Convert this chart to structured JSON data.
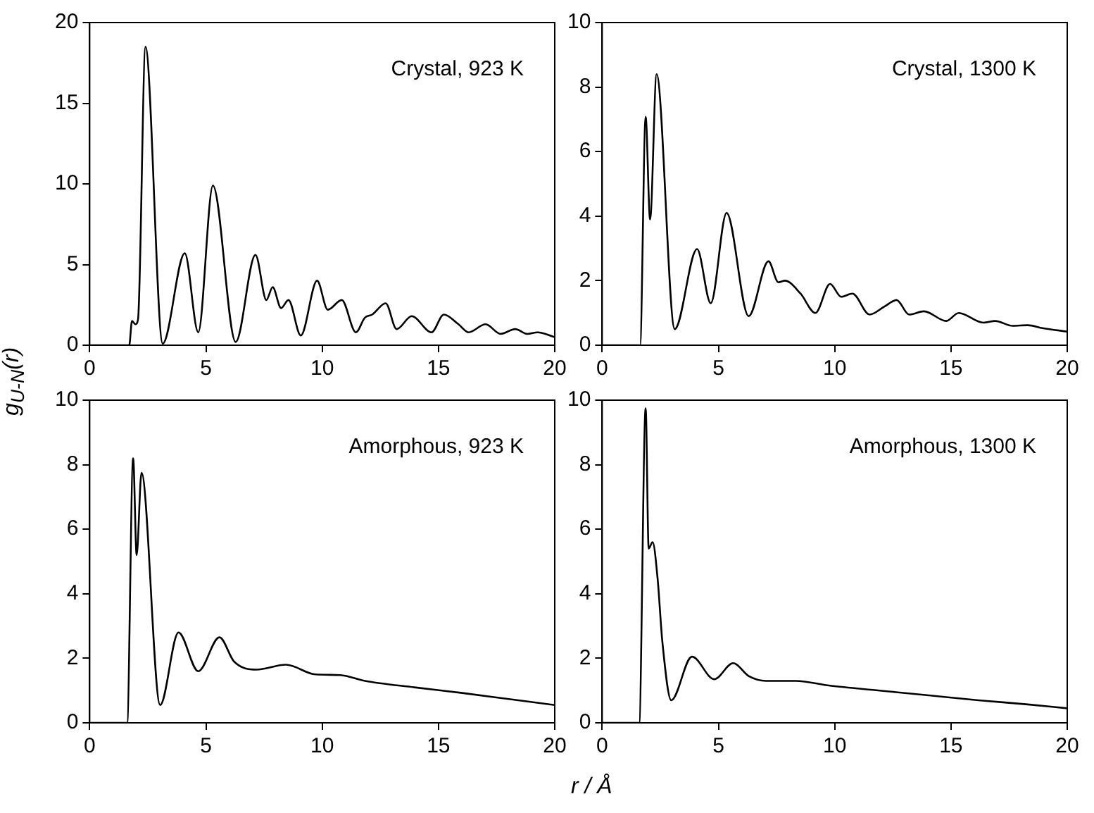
{
  "chart_data": [
    {
      "type": "line",
      "ylabel": "g$_{U-N}$(r)",
      "annotations": [
        "Crystal, 923 K"
      ],
      "xlim": [
        0,
        20
      ],
      "xticks": [
        0,
        5,
        10,
        15,
        20
      ],
      "ylim": [
        0,
        20
      ],
      "yticks": [
        0,
        5,
        10,
        15,
        20
      ],
      "grid": false,
      "legend": false,
      "marker": "none",
      "series": [
        {
          "color": "#000000",
          "x": [
            0,
            1.7,
            1.82,
            1.97,
            2.08,
            2.4,
            3.14,
            4.09,
            4.67,
            5.3,
            6.28,
            7.13,
            7.6,
            7.87,
            8.23,
            8.55,
            9.08,
            9.78,
            10.24,
            10.84,
            11.45,
            11.83,
            12.15,
            12.73,
            13.2,
            13.85,
            14.7,
            15.23,
            15.86,
            16.29,
            17.03,
            17.67,
            18.3,
            18.83,
            19.26,
            20
          ],
          "values": [
            0,
            0,
            1.5,
            1.3,
            1.6,
            18.5,
            0.1,
            5.7,
            0.8,
            9.9,
            0.2,
            5.6,
            2.8,
            3.6,
            2.3,
            2.8,
            0.6,
            4.0,
            2.2,
            2.8,
            0.8,
            1.7,
            1.9,
            2.6,
            1.0,
            1.8,
            0.8,
            1.9,
            1.3,
            0.8,
            1.3,
            0.7,
            1.0,
            0.7,
            0.8,
            0.5
          ]
        }
      ]
    },
    {
      "type": "line",
      "annotations": [
        "Crystal, 1300 K"
      ],
      "xlim": [
        0,
        20
      ],
      "xticks": [
        0,
        5,
        10,
        15,
        20
      ],
      "ylim": [
        0,
        10
      ],
      "yticks": [
        0,
        2,
        4,
        6,
        8,
        10
      ],
      "grid": false,
      "legend": false,
      "marker": "none",
      "series": [
        {
          "color": "#000000",
          "x": [
            0,
            1.63,
            1.87,
            2.06,
            2.34,
            3.12,
            4.08,
            4.67,
            5.35,
            6.3,
            7.15,
            7.58,
            7.86,
            8.53,
            9.17,
            9.8,
            10.28,
            10.76,
            11.5,
            12.14,
            12.66,
            13.2,
            13.84,
            14.8,
            15.33,
            16.4,
            16.9,
            17.66,
            18.3,
            18.94,
            20
          ],
          "values": [
            0,
            0,
            7.08,
            3.9,
            8.4,
            0.5,
            2.98,
            1.3,
            4.1,
            0.9,
            2.6,
            1.95,
            2.0,
            1.6,
            1.0,
            1.9,
            1.5,
            1.6,
            0.95,
            1.2,
            1.4,
            0.95,
            1.05,
            0.75,
            1.0,
            0.7,
            0.75,
            0.6,
            0.62,
            0.53,
            0.42
          ]
        }
      ]
    },
    {
      "type": "line",
      "xlabel": "r / Å",
      "annotations": [
        "Amorphous, 923 K"
      ],
      "xlim": [
        0,
        20
      ],
      "xticks": [
        0,
        5,
        10,
        15,
        20
      ],
      "ylim": [
        0,
        10
      ],
      "yticks": [
        0,
        2,
        4,
        6,
        8,
        10
      ],
      "grid": false,
      "legend": false,
      "marker": "none",
      "series": [
        {
          "color": "#000000",
          "x": [
            0,
            1.61,
            1.87,
            2.02,
            2.23,
            3.03,
            3.82,
            4.67,
            5.58,
            6.21,
            7.17,
            8.44,
            9.71,
            10.77,
            11.84,
            13.96,
            16.08,
            18.2,
            20
          ],
          "values": [
            0,
            0,
            8.2,
            5.2,
            7.75,
            0.55,
            2.8,
            1.6,
            2.65,
            1.9,
            1.65,
            1.8,
            1.5,
            1.48,
            1.3,
            1.1,
            0.92,
            0.72,
            0.55
          ]
        }
      ]
    },
    {
      "type": "line",
      "annotations": [
        "Amorphous, 1300 K"
      ],
      "xlim": [
        0,
        20
      ],
      "xticks": [
        0,
        5,
        10,
        15,
        20
      ],
      "ylim": [
        0,
        10
      ],
      "yticks": [
        0,
        2,
        4,
        6,
        8,
        10
      ],
      "grid": false,
      "legend": false,
      "marker": "none",
      "series": [
        {
          "color": "#000000",
          "x": [
            0,
            1.59,
            1.87,
            2.0,
            2.17,
            2.38,
            2.59,
            2.97,
            3.86,
            4.82,
            5.63,
            6.3,
            7.05,
            8.32,
            9.8,
            11.93,
            14.05,
            16.18,
            18.3,
            20
          ],
          "values": [
            0,
            0,
            9.75,
            5.4,
            5.6,
            4.5,
            2.5,
            0.7,
            2.05,
            1.35,
            1.85,
            1.45,
            1.3,
            1.3,
            1.15,
            1.0,
            0.85,
            0.7,
            0.57,
            0.45
          ]
        }
      ]
    }
  ]
}
